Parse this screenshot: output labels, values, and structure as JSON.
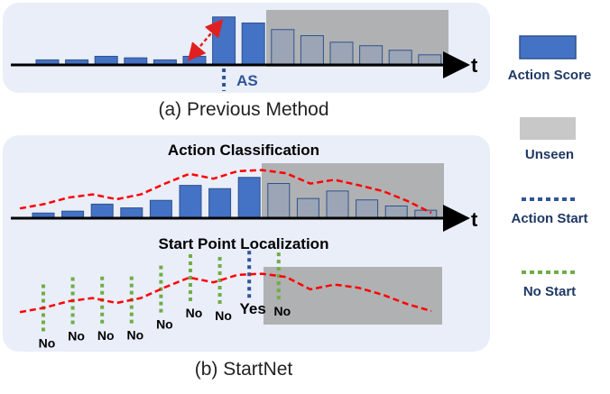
{
  "panel_a": {
    "caption": "(a) Previous Method",
    "axis_label": "t",
    "as_label": "AS",
    "scores": [
      0.1,
      0.1,
      0.17,
      0.14,
      0.1,
      0.17,
      0.95,
      0.83,
      0.7,
      0.58,
      0.45,
      0.38,
      0.29,
      0.2
    ],
    "action_start_index": 6,
    "unseen_from_index": 8
  },
  "panel_b": {
    "caption": "(b) StartNet",
    "classification_title": "Action Classification",
    "localization_title": "Start Point Localization",
    "axis_label": "t",
    "bar_scores": [
      0.11,
      0.15,
      0.3,
      0.22,
      0.38,
      0.7,
      0.63,
      0.87,
      0.74,
      0.42,
      0.58,
      0.39,
      0.26,
      0.17
    ],
    "classification_curve": [
      0.18,
      0.26,
      0.38,
      0.44,
      0.35,
      0.44,
      0.64,
      0.82,
      0.73,
      0.87,
      0.89,
      0.83,
      0.64,
      0.71,
      0.61,
      0.5,
      0.32,
      0.1
    ],
    "localization_curve": [
      0.18,
      0.26,
      0.38,
      0.44,
      0.35,
      0.44,
      0.64,
      0.82,
      0.73,
      0.87,
      0.89,
      0.83,
      0.6,
      0.69,
      0.63,
      0.5,
      0.33,
      0.2
    ],
    "start_labels": [
      "No",
      "No",
      "No",
      "No",
      "No",
      "No",
      "No",
      "Yes",
      "No"
    ],
    "action_start_index": 7,
    "unseen_from_index": 8
  },
  "legend": {
    "action_score": "Action Score",
    "unseen": "Unseen",
    "action_start": "Action Start",
    "no_start": "No Start"
  },
  "colors": {
    "panel_bg": "#e9eef9",
    "bar": "#4472c4",
    "bar_border": "#2f528f",
    "unseen": "#a6a6a6",
    "curve": "#ff0000",
    "action_start": "#2f5597",
    "no_start": "#70ad47",
    "arrow": "#e02020"
  }
}
